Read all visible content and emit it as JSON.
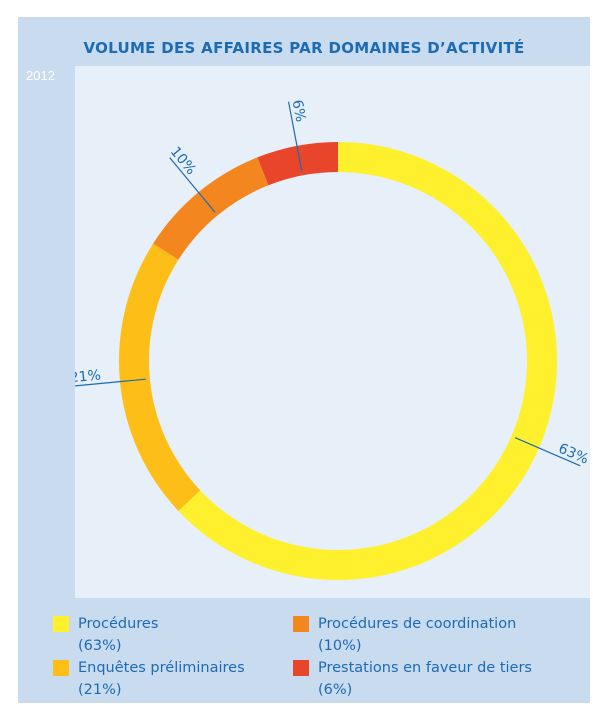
{
  "title": "VOLUME DES AFFAIRES PAR DOMAINES D’ACTIVITÉ",
  "year_label": "2012",
  "colors": {
    "label": "#1c6bb5",
    "panel": "#c9dbef",
    "plot": "#e7f0f8"
  },
  "chart_data": {
    "type": "pie",
    "subtype": "donut",
    "title": "VOLUME DES AFFAIRES PAR DOMAINES D’ACTIVITÉ",
    "slices": [
      {
        "name": "Procédures",
        "value": 63,
        "label": "63%",
        "color": "#fef02c"
      },
      {
        "name": "Enquêtes préliminaires",
        "value": 21,
        "label": "21%",
        "color": "#fdbe17"
      },
      {
        "name": "Procédures de coordination",
        "value": 10,
        "label": "10%",
        "color": "#f4861f"
      },
      {
        "name": "Prestations en faveur de tiers",
        "value": 6,
        "label": "6%",
        "color": "#e8452a"
      }
    ]
  },
  "legend": [
    {
      "name": "Procédures",
      "pct": "(63%)",
      "color": "#fef02c"
    },
    {
      "name": "Procédures de coordination",
      "pct": "(10%)",
      "color": "#f4861f"
    },
    {
      "name": "Enquêtes préliminaires",
      "pct": "(21%)",
      "color": "#fdbe17"
    },
    {
      "name": "Prestations en faveur de tiers",
      "pct": "(6%)",
      "color": "#e8452a"
    }
  ]
}
